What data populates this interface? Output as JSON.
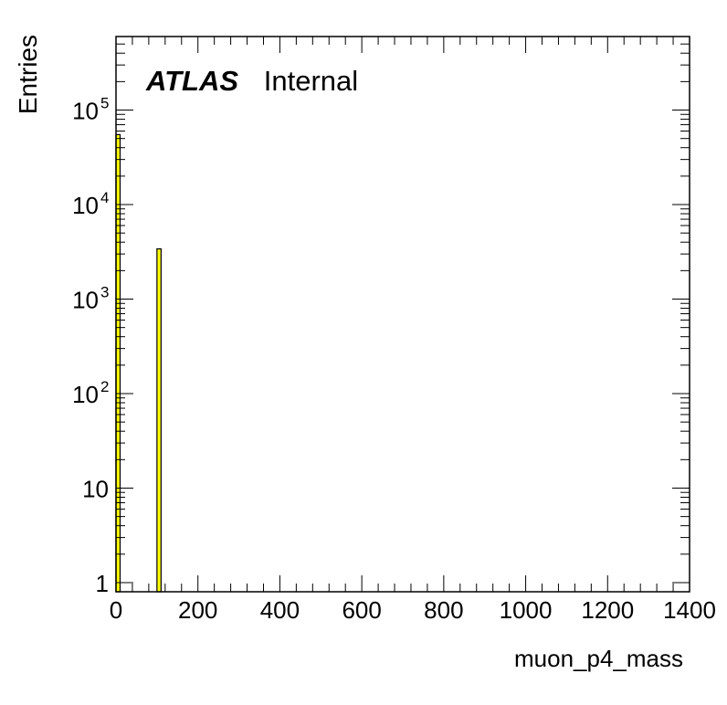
{
  "chart_data": {
    "type": "bar",
    "xlabel": "muon_p4_mass",
    "ylabel": "Entries",
    "xlim": [
      0,
      1400
    ],
    "ylim": [
      0.8,
      600000
    ],
    "yscale": "log",
    "x_ticks": [
      "0",
      "200",
      "400",
      "600",
      "800",
      "1000",
      "1200",
      "1400"
    ],
    "y_ticks": [
      {
        "value": 1,
        "base": "1",
        "exp": ""
      },
      {
        "value": 10,
        "base": "10",
        "exp": ""
      },
      {
        "value": 100,
        "base": "10",
        "exp": "2"
      },
      {
        "value": 1000,
        "base": "10",
        "exp": "3"
      },
      {
        "value": 10000,
        "base": "10",
        "exp": "4"
      },
      {
        "value": 100000,
        "base": "10",
        "exp": "5"
      }
    ],
    "bin_width": 10,
    "bins": [
      {
        "x": 0,
        "value": 55000
      },
      {
        "x": 100,
        "value": 3400
      }
    ],
    "fill_color": "#ffff00",
    "edge_color": "#000000",
    "grid": false,
    "annotation": {
      "bold": "ATLAS",
      "normal": "Internal"
    }
  }
}
